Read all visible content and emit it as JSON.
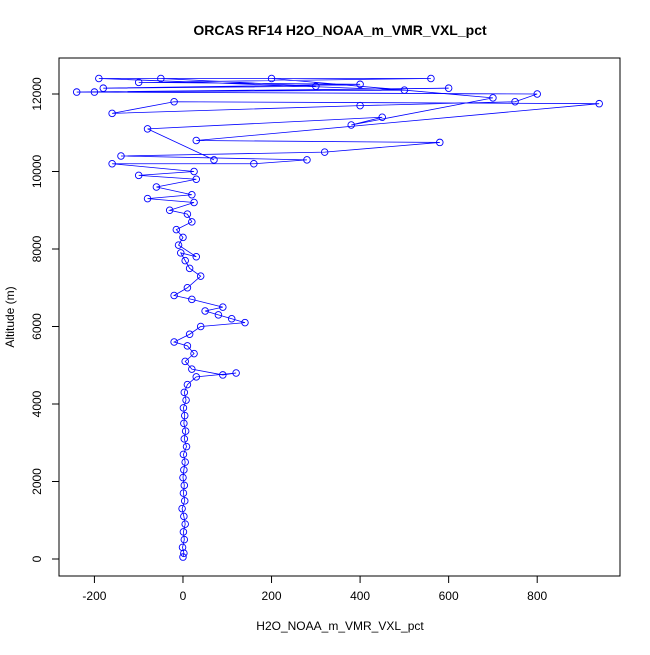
{
  "chart_data": {
    "type": "scatter",
    "title": "ORCAS RF14 H2O_NOAA_m_VMR_VXL_pct",
    "x_label": "H2O_NOAA_m_VMR_VXL_pct",
    "y_label": "Altitude (m)",
    "color": "#0000ff",
    "connect": true,
    "x": [
      0,
      2,
      -1,
      3,
      1,
      5,
      2,
      -2,
      4,
      1,
      3,
      0,
      2,
      5,
      1,
      8,
      3,
      6,
      2,
      4,
      1,
      7,
      3,
      10,
      30,
      120,
      90,
      20,
      5,
      25,
      10,
      -20,
      15,
      40,
      140,
      110,
      80,
      50,
      90,
      20,
      -20,
      10,
      40,
      15,
      5,
      -5,
      30,
      -10,
      0,
      -15,
      20,
      10,
      -30,
      25,
      -80,
      20,
      -60,
      30,
      -100,
      25,
      -160,
      160,
      280,
      -140,
      320,
      580,
      30,
      940,
      -20,
      -160,
      400,
      750,
      800,
      -200,
      600,
      -240,
      500,
      -190,
      560,
      -100,
      400,
      -180,
      300,
      -50,
      200,
      700,
      380,
      450,
      -80,
      70
    ],
    "values": [
      50,
      150,
      300,
      500,
      700,
      900,
      1100,
      1300,
      1500,
      1700,
      1900,
      2100,
      2300,
      2500,
      2700,
      2900,
      3100,
      3300,
      3500,
      3700,
      3900,
      4100,
      4300,
      4500,
      4700,
      4800,
      4750,
      4900,
      5100,
      5300,
      5500,
      5600,
      5800,
      6000,
      6100,
      6200,
      6300,
      6400,
      6500,
      6700,
      6800,
      7000,
      7300,
      7500,
      7700,
      7900,
      7800,
      8100,
      8300,
      8500,
      8700,
      8900,
      9000,
      9200,
      9300,
      9400,
      9600,
      9800,
      9900,
      10000,
      10200,
      10200,
      10300,
      10400,
      10500,
      10750,
      10800,
      11750,
      11800,
      11500,
      11700,
      11800,
      12000,
      12050,
      12150,
      12050,
      12100,
      12400,
      12400,
      12300,
      12250,
      12150,
      12200,
      12400,
      12400,
      11900,
      11200,
      11400,
      11100,
      10300
    ],
    "xlim": [
      -280,
      987
    ],
    "ylim": [
      -439,
      12929
    ],
    "xticks": [
      -200,
      0,
      200,
      400,
      600,
      800
    ],
    "yticks": [
      0,
      2000,
      4000,
      6000,
      8000,
      10000,
      12000
    ]
  }
}
